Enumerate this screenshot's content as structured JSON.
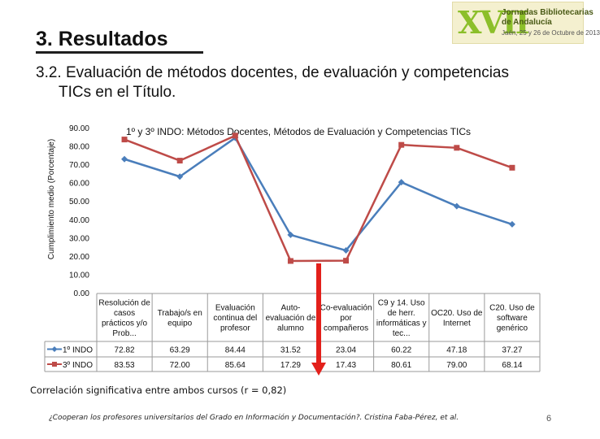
{
  "header": {
    "title": "3. Resultados",
    "subtitle_line1": "3.2. Evaluación de métodos docentes, de evaluación y competencias",
    "subtitle_line2": "TICs en el Título.",
    "logo": {
      "roman": "XVII",
      "line1": "Jornadas Bibliotecarias",
      "line2": "de Andalucía",
      "line3": "Jaén, 25 y 26 de Octubre de 2013"
    }
  },
  "chart_data": {
    "type": "line",
    "title": "1º y 3º INDO: Métodos Docentes, Métodos de Evaluación y Competencias TICs",
    "ylabel": "Cumplimiento medio (Porcentaje)",
    "ylim": [
      0,
      90
    ],
    "yticks": [
      "0.00",
      "10.00",
      "20.00",
      "30.00",
      "40.00",
      "50.00",
      "60.00",
      "70.00",
      "80.00",
      "90.00"
    ],
    "grid": false,
    "legend": "data table",
    "categories": [
      [
        "Resolución de",
        "casos",
        "prácticos y/o",
        "Prob..."
      ],
      [
        "Trabajo/s en",
        "equipo"
      ],
      [
        "Evaluación",
        "continua del",
        "profesor"
      ],
      [
        "Auto-",
        "evaluación de",
        "alumno"
      ],
      [
        "Co-evaluación",
        "por",
        "compañeros"
      ],
      [
        "C9 y 14. Uso",
        "de herr.",
        "informáticas y",
        "tec..."
      ],
      [
        "OC20. Uso de",
        "Internet"
      ],
      [
        "C20. Uso de",
        "software",
        "genérico"
      ]
    ],
    "series": [
      {
        "name": "1º INDO",
        "color": "#4a7ebb",
        "marker": "diamond",
        "values": [
          72.82,
          63.29,
          84.44,
          31.52,
          23.04,
          60.22,
          47.18,
          37.27
        ],
        "labels": [
          "72.82",
          "63.29",
          "84.44",
          "31.52",
          "23.04",
          "60.22",
          "47.18",
          "37.27"
        ]
      },
      {
        "name": "3º INDO",
        "color": "#be4b48",
        "marker": "square",
        "values": [
          83.53,
          72.0,
          85.64,
          17.29,
          17.43,
          80.61,
          79.0,
          68.14
        ],
        "labels": [
          "83.53",
          "72.00",
          "85.64",
          "17.29",
          "17.43",
          "80.61",
          "79.00",
          "68.14"
        ]
      }
    ],
    "annotation": {
      "type": "arrow-down",
      "color": "#e3201b"
    }
  },
  "footnote": "Correlación significativa entre ambos cursos (r = 0,82)",
  "citation": "¿Cooperan los profesores universitarios del Grado en Información y Documentación?. Cristina Faba-Pérez, et al.",
  "page_number": "6"
}
